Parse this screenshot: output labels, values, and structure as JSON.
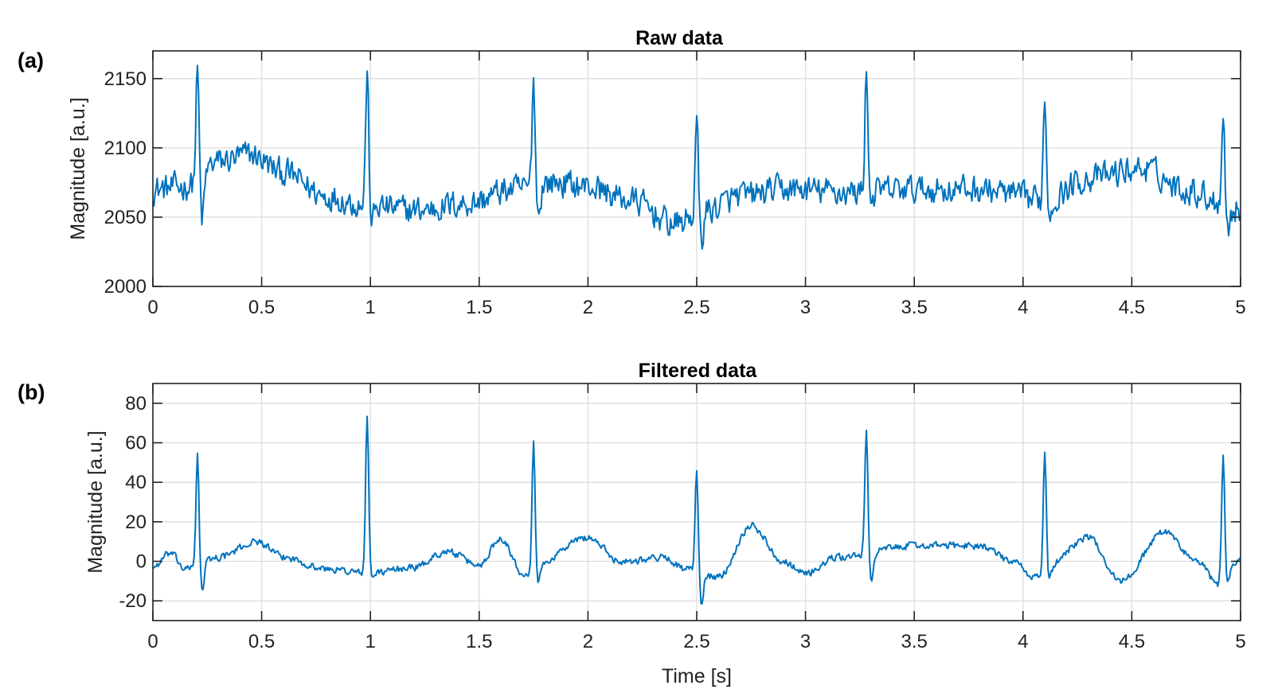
{
  "chart_data": [
    {
      "type": "line",
      "panel": "(a)",
      "title": "Raw data",
      "xlabel": "",
      "ylabel": "Magnitude [a.u.]",
      "xlim": [
        0,
        5
      ],
      "ylim": [
        2000,
        2170
      ],
      "xticks": [
        0,
        0.5,
        1,
        1.5,
        2,
        2.5,
        3,
        3.5,
        4,
        4.5,
        5
      ],
      "xtick_labels": [
        "0",
        "0.5",
        "1",
        "1.5",
        "2",
        "2.5",
        "3",
        "3.5",
        "4",
        "4.5",
        "5"
      ],
      "yticks": [
        2000,
        2050,
        2100,
        2150
      ],
      "ytick_labels": [
        "2000",
        "2050",
        "2100",
        "2150"
      ],
      "grid": true,
      "color": "#0072BD",
      "sample_rate_hz": 200,
      "series": [
        {
          "name": "Raw data",
          "baseline_knots": [
            [
              0,
              2070
            ],
            [
              0.15,
              2072
            ],
            [
              0.3,
              2090
            ],
            [
              0.45,
              2095
            ],
            [
              0.6,
              2082
            ],
            [
              0.8,
              2065
            ],
            [
              1.0,
              2058
            ],
            [
              1.2,
              2055
            ],
            [
              1.45,
              2060
            ],
            [
              1.65,
              2070
            ],
            [
              1.85,
              2075
            ],
            [
              2.0,
              2072
            ],
            [
              2.2,
              2062
            ],
            [
              2.4,
              2045
            ],
            [
              2.55,
              2055
            ],
            [
              2.7,
              2065
            ],
            [
              2.9,
              2070
            ],
            [
              3.2,
              2068
            ],
            [
              3.5,
              2070
            ],
            [
              3.8,
              2070
            ],
            [
              4.1,
              2062
            ],
            [
              4.3,
              2078
            ],
            [
              4.55,
              2085
            ],
            [
              4.75,
              2070
            ],
            [
              5.0,
              2055
            ]
          ],
          "peaks": [
            [
              0.205,
              2158,
              2040
            ],
            [
              0.985,
              2155,
              2045
            ],
            [
              1.75,
              2152,
              2048
            ],
            [
              2.5,
              2120,
              2030
            ],
            [
              3.28,
              2157,
              2060
            ],
            [
              4.1,
              2138,
              2050
            ],
            [
              4.92,
              2128,
              2040
            ]
          ],
          "noise_amplitude": 14
        }
      ]
    },
    {
      "type": "line",
      "panel": "(b)",
      "title": "Filtered data",
      "xlabel": "Time [s]",
      "ylabel": "Magnitude [a.u.]",
      "xlim": [
        0,
        5
      ],
      "ylim": [
        -30,
        90
      ],
      "xticks": [
        0,
        0.5,
        1,
        1.5,
        2,
        2.5,
        3,
        3.5,
        4,
        4.5,
        5
      ],
      "xtick_labels": [
        "0",
        "0.5",
        "1",
        "1.5",
        "2",
        "2.5",
        "3",
        "3.5",
        "4",
        "4.5",
        "5"
      ],
      "yticks": [
        -20,
        0,
        20,
        40,
        60,
        80
      ],
      "ytick_labels": [
        "-20",
        "0",
        "20",
        "40",
        "60",
        "80"
      ],
      "grid": true,
      "color": "#0072BD",
      "sample_rate_hz": 200,
      "series": [
        {
          "name": "Filtered data",
          "baseline_knots": [
            [
              0,
              -3
            ],
            [
              0.08,
              4
            ],
            [
              0.15,
              -4
            ],
            [
              0.3,
              2
            ],
            [
              0.48,
              10
            ],
            [
              0.6,
              2
            ],
            [
              0.8,
              -4
            ],
            [
              1.0,
              -6
            ],
            [
              1.2,
              -3
            ],
            [
              1.35,
              5
            ],
            [
              1.5,
              -2
            ],
            [
              1.6,
              12
            ],
            [
              1.7,
              -6
            ],
            [
              2.0,
              12
            ],
            [
              2.15,
              0
            ],
            [
              2.35,
              2
            ],
            [
              2.45,
              -4
            ],
            [
              2.6,
              -8
            ],
            [
              2.75,
              18
            ],
            [
              2.9,
              0
            ],
            [
              3.0,
              -6
            ],
            [
              3.15,
              2
            ],
            [
              3.5,
              8
            ],
            [
              3.8,
              8
            ],
            [
              3.95,
              0
            ],
            [
              4.05,
              -8
            ],
            [
              4.3,
              12
            ],
            [
              4.45,
              -10
            ],
            [
              4.65,
              15
            ],
            [
              4.8,
              0
            ],
            [
              4.9,
              -12
            ],
            [
              5.0,
              2
            ]
          ],
          "peaks": [
            [
              0.205,
              55,
              -18
            ],
            [
              0.985,
              73,
              -8
            ],
            [
              1.75,
              60,
              -12
            ],
            [
              2.5,
              46,
              -24
            ],
            [
              3.28,
              66,
              -12
            ],
            [
              4.1,
              55,
              -12
            ],
            [
              4.92,
              55,
              -16
            ]
          ],
          "noise_amplitude": 2.5
        }
      ]
    }
  ]
}
